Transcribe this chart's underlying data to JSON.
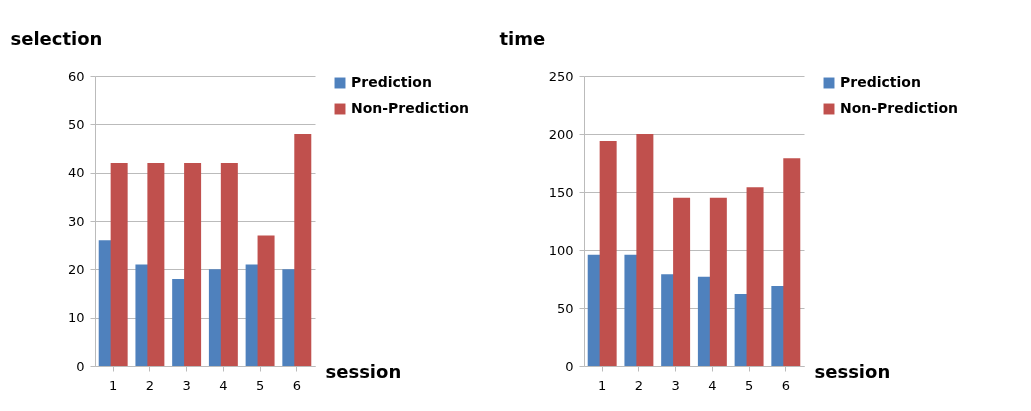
{
  "chart_data": [
    {
      "type": "bar",
      "xlabel": "session",
      "ylabel": "selection",
      "categories": [
        "1",
        "2",
        "3",
        "4",
        "5",
        "6"
      ],
      "series": [
        {
          "name": "Prediction",
          "color": "#4f81bd",
          "values": [
            26,
            21,
            18,
            20,
            21,
            20
          ]
        },
        {
          "name": "Non-Prediction",
          "color": "#c0504d",
          "values": [
            42,
            42,
            42,
            42,
            27,
            48
          ]
        }
      ],
      "ylim": [
        0,
        60
      ],
      "yticks": [
        0,
        10,
        20,
        30,
        40,
        50,
        60
      ],
      "grid": "y",
      "legend": "right"
    },
    {
      "type": "bar",
      "xlabel": "session",
      "ylabel": "time",
      "categories": [
        "1",
        "2",
        "3",
        "4",
        "5",
        "6"
      ],
      "series": [
        {
          "name": "Prediction",
          "color": "#4f81bd",
          "values": [
            96,
            96,
            79,
            77,
            62,
            69
          ]
        },
        {
          "name": "Non-Prediction",
          "color": "#c0504d",
          "values": [
            194,
            200,
            145,
            145,
            154,
            179
          ]
        }
      ],
      "ylim": [
        0,
        250
      ],
      "yticks": [
        0,
        50,
        100,
        150,
        200,
        250
      ],
      "grid": "y",
      "legend": "right"
    }
  ]
}
